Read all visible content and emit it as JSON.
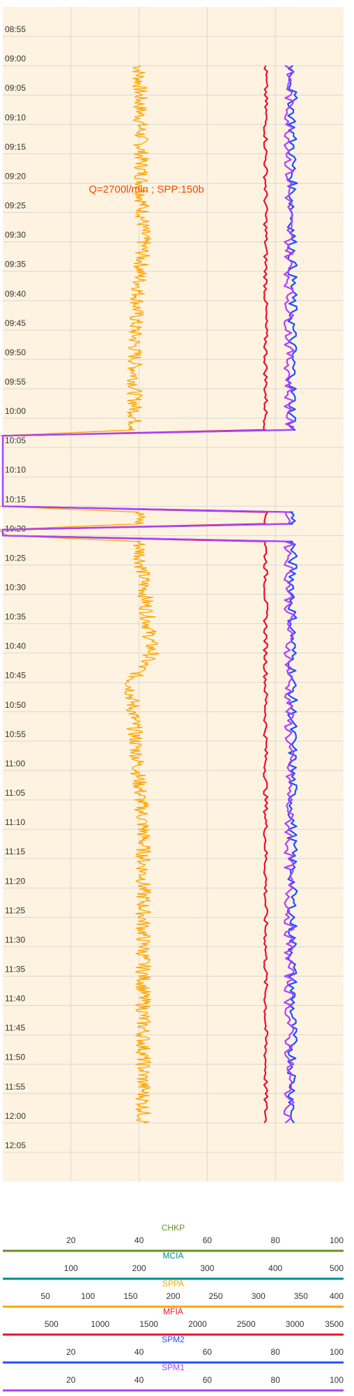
{
  "colors": {
    "background": "#fdf3e0",
    "grid": "#d8d8d8",
    "chkp": "#6b8e23",
    "mcia": "#008b8b",
    "sppa": "#ffa500",
    "mfia": "#e8112d",
    "spm2": "#1e50ff",
    "spm1": "#b040ff",
    "annotation": "#ff4500"
  },
  "annotation": "Q=2700l/min ; SPP:150b",
  "time_ticks": [
    "08:55",
    "09:00",
    "09:05",
    "09:10",
    "09:15",
    "09:20",
    "09:25",
    "09:30",
    "09:35",
    "09:40",
    "09:45",
    "09:50",
    "09:55",
    "10:00",
    "10:05",
    "10:10",
    "10:15",
    "10:20",
    "10:25",
    "10:30",
    "10:35",
    "10:40",
    "10:45",
    "10:50",
    "10:55",
    "11:00",
    "11:05",
    "11:10",
    "11:15",
    "11:20",
    "11:25",
    "11:30",
    "11:35",
    "11:40",
    "11:45",
    "11:50",
    "11:55",
    "12:00",
    "12:05"
  ],
  "axes": [
    {
      "key": "chkp",
      "title": "CHKP",
      "color": "#6b8e23",
      "ticks": [
        "20",
        "40",
        "60",
        "80",
        "100"
      ]
    },
    {
      "key": "mcia",
      "title": "MCIA",
      "color": "#008b8b",
      "ticks": [
        "100",
        "200",
        "300",
        "400",
        "500"
      ]
    },
    {
      "key": "sppa",
      "title": "SPPA",
      "color": "#ffa500",
      "ticks": [
        "50",
        "100",
        "150",
        "200",
        "250",
        "300",
        "350",
        "400"
      ]
    },
    {
      "key": "mfia",
      "title": "MFIA",
      "color": "#e8112d",
      "ticks": [
        "500",
        "1000",
        "1500",
        "2000",
        "2500",
        "3000",
        "3500"
      ]
    },
    {
      "key": "spm2",
      "title": "SPM2",
      "color": "#1e50ff",
      "ticks": [
        "20",
        "40",
        "60",
        "80",
        "100"
      ]
    },
    {
      "key": "spm1",
      "title": "SPM1",
      "color": "#b040ff",
      "ticks": [
        "20",
        "40",
        "60",
        "80",
        "100"
      ]
    }
  ],
  "chart_data": {
    "type": "line",
    "y_axis": "time",
    "y_range": [
      "08:50",
      "12:10"
    ],
    "annotations": [
      {
        "text": "Q=2700l/min ; SPP:150b",
        "time": "09:21",
        "axis": "sppa",
        "value": 150
      }
    ],
    "series": [
      {
        "name": "SPPA",
        "axis": "sppa",
        "range": [
          0,
          400
        ],
        "points": [
          [
            "09:00",
            160
          ],
          [
            "09:30",
            165
          ],
          [
            "09:45",
            155
          ],
          [
            "10:02",
            155
          ],
          [
            "10:03",
            -5
          ],
          [
            "10:15",
            -5
          ],
          [
            "10:16",
            160
          ],
          [
            "10:18",
            160
          ],
          [
            "10:19",
            -5
          ],
          [
            "10:20",
            5
          ],
          [
            "10:21",
            160
          ],
          [
            "10:40",
            175
          ],
          [
            "10:45",
            150
          ],
          [
            "11:10",
            165
          ],
          [
            "11:30",
            165
          ],
          [
            "12:00",
            165
          ]
        ]
      },
      {
        "name": "MFIA",
        "axis": "mfia",
        "range": [
          0,
          3500
        ],
        "points": [
          [
            "09:00",
            2700
          ],
          [
            "10:02",
            2700
          ],
          [
            "10:03",
            0
          ],
          [
            "10:15",
            0
          ],
          [
            "10:16",
            2700
          ],
          [
            "10:18",
            2700
          ],
          [
            "10:19",
            0
          ],
          [
            "10:20",
            0
          ],
          [
            "10:21",
            2700
          ],
          [
            "12:00",
            2700
          ]
        ]
      },
      {
        "name": "SPM2",
        "axis": "spm2",
        "range": [
          0,
          100
        ],
        "points": [
          [
            "09:00",
            85
          ],
          [
            "10:02",
            85
          ],
          [
            "10:03",
            0
          ],
          [
            "10:15",
            0
          ],
          [
            "10:16",
            85
          ],
          [
            "10:18",
            85
          ],
          [
            "10:19",
            0
          ],
          [
            "10:20",
            0
          ],
          [
            "10:21",
            85
          ],
          [
            "12:00",
            85
          ]
        ]
      },
      {
        "name": "SPM1",
        "axis": "spm1",
        "range": [
          0,
          100
        ],
        "points": [
          [
            "09:00",
            84
          ],
          [
            "10:02",
            84
          ],
          [
            "10:03",
            0
          ],
          [
            "10:15",
            0
          ],
          [
            "10:16",
            84
          ],
          [
            "10:18",
            84
          ],
          [
            "10:19",
            0
          ],
          [
            "10:20",
            0
          ],
          [
            "10:21",
            84
          ],
          [
            "12:00",
            84
          ]
        ]
      }
    ]
  }
}
